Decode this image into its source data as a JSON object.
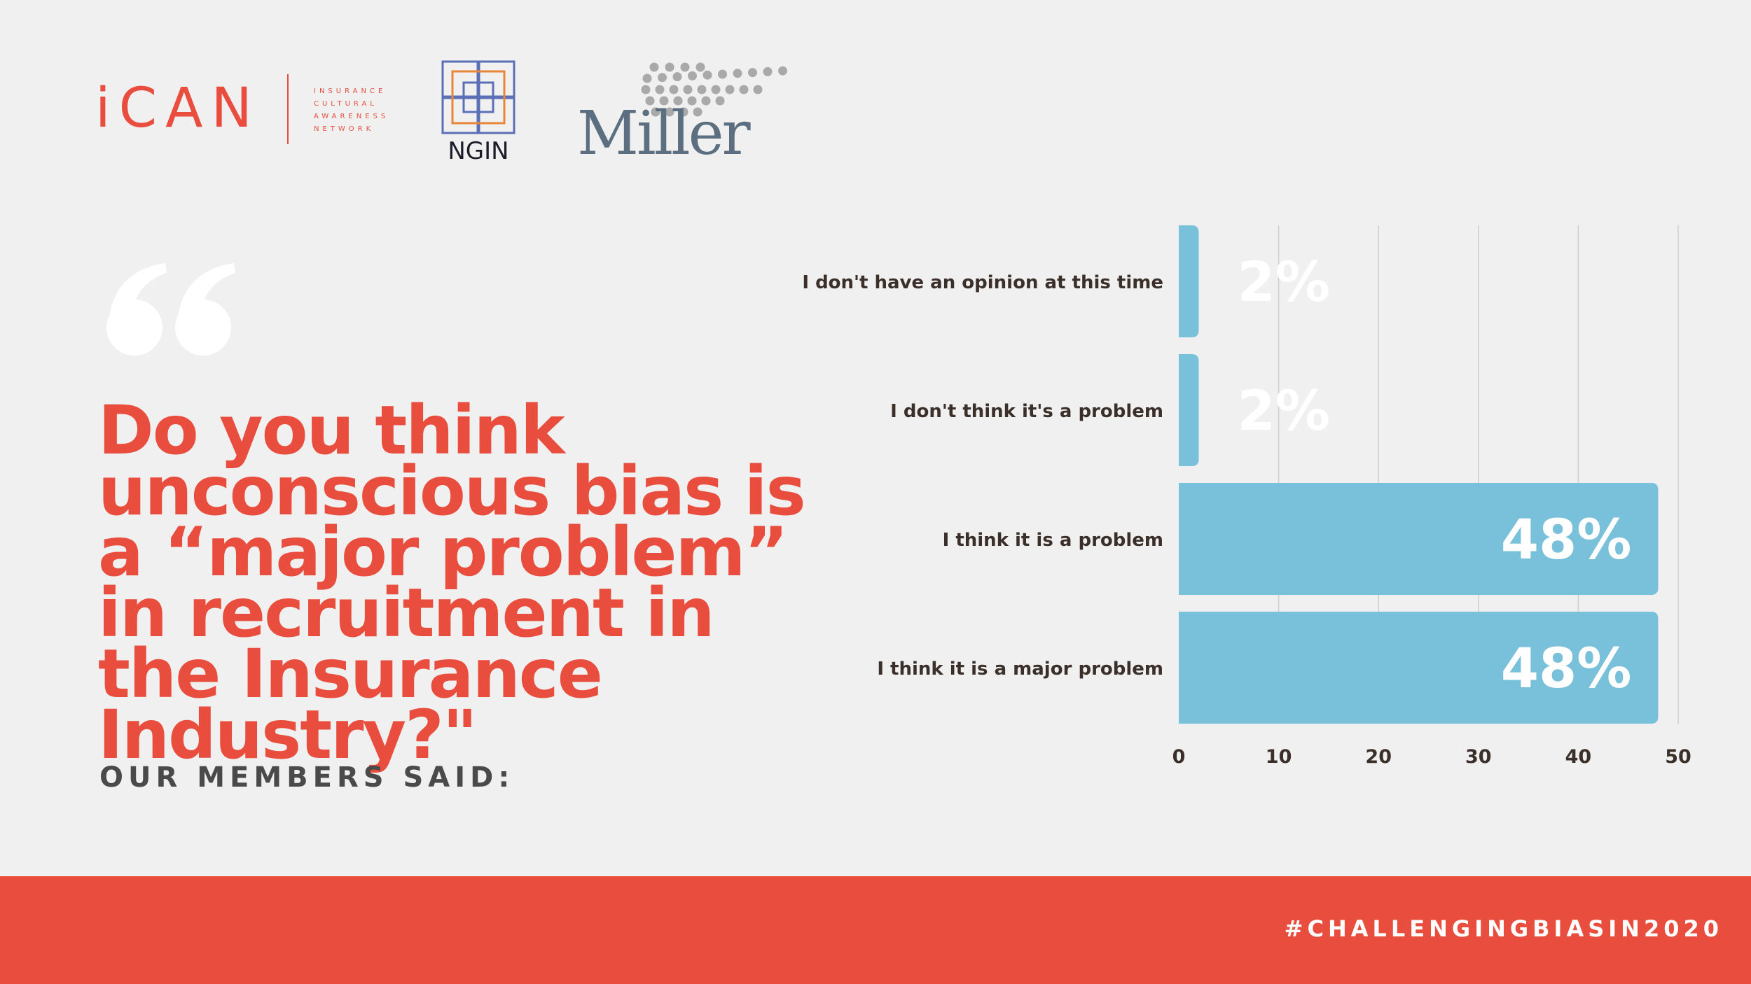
{
  "logos": {
    "ican": {
      "word": "iCAN",
      "subtitle_lines": [
        "INSURANCE",
        "CULTURAL",
        "AWARENESS",
        "NETWORK"
      ]
    },
    "ngin": {
      "word": "NGIN"
    },
    "miller": {
      "word": "Miller"
    }
  },
  "question": "Do you think unconscious bias is a “major problem” in recruitment in the Insurance Industry?\"",
  "members_said": "OUR MEMBERS SAID:",
  "footer": {
    "hashtag": "#CHALLENGINGBIASIN2020"
  },
  "colors": {
    "accent": "#e84d3d",
    "bar": "#79c0da",
    "background": "#f1f0f0",
    "text_dark": "#3b2f2a"
  },
  "chart_data": {
    "type": "bar",
    "orientation": "horizontal",
    "categories": [
      "I don't have an opinion at this time",
      "I don't think it's a problem",
      "I think it is a problem",
      "I think it is a major problem"
    ],
    "values": [
      2,
      2,
      48,
      48
    ],
    "data_labels": [
      "2%",
      "2%",
      "48%",
      "48%"
    ],
    "xlim": [
      0,
      50
    ],
    "xticks": [
      0,
      10,
      20,
      30,
      40,
      50
    ],
    "grid": true,
    "title": "",
    "xlabel": "",
    "ylabel": ""
  }
}
